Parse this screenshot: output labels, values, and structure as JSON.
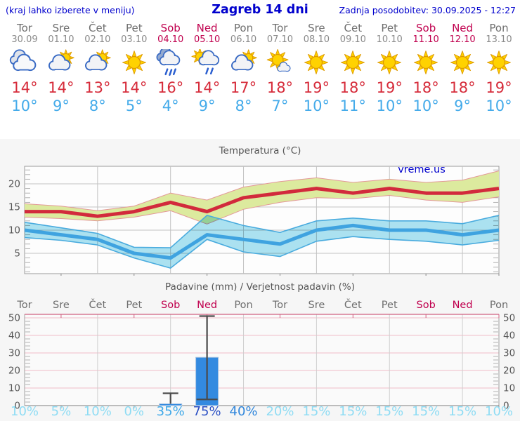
{
  "header": {
    "left_note": "(kraj lahko izberete v meniju)",
    "title": "Zagreb 14 dni",
    "last_update": "Zadnja posodobitev: 30.09.2025 - 12:27"
  },
  "colors": {
    "header_blue": "#0000cd",
    "weekend": "#c0004e",
    "weekday": "#6e6e6e",
    "date_gray": "#8a8a8a",
    "tmax_red": "#d62b3a",
    "tmin_blue": "#45abea",
    "section_bg": "#f6f6f6",
    "grid_gray": "#c3c3c3",
    "grid_pink": "#f0bcc8",
    "axis_text": "#555555",
    "watermark_blue": "#0000cc"
  },
  "forecast": {
    "days": [
      {
        "name": "Tor",
        "date": "30.09",
        "weekend": false,
        "icon": "cloudy",
        "tmax": "14°",
        "tmin": "10°"
      },
      {
        "name": "Sre",
        "date": "01.10",
        "weekend": false,
        "icon": "partly-cloudy",
        "tmax": "14°",
        "tmin": "9°"
      },
      {
        "name": "Čet",
        "date": "02.10",
        "weekend": false,
        "icon": "partly-cloudy",
        "tmax": "13°",
        "tmin": "8°"
      },
      {
        "name": "Pet",
        "date": "03.10",
        "weekend": false,
        "icon": "sunny",
        "tmax": "14°",
        "tmin": "5°"
      },
      {
        "name": "Sob",
        "date": "04.10",
        "weekend": true,
        "icon": "rain",
        "tmax": "16°",
        "tmin": "4°"
      },
      {
        "name": "Ned",
        "date": "05.10",
        "weekend": true,
        "icon": "sun-rain",
        "tmax": "14°",
        "tmin": "9°"
      },
      {
        "name": "Pon",
        "date": "06.10",
        "weekend": false,
        "icon": "partly-cloudy",
        "tmax": "17°",
        "tmin": "8°"
      },
      {
        "name": "Tor",
        "date": "07.10",
        "weekend": false,
        "icon": "mostly-sunny",
        "tmax": "18°",
        "tmin": "7°"
      },
      {
        "name": "Sre",
        "date": "08.10",
        "weekend": false,
        "icon": "sunny",
        "tmax": "19°",
        "tmin": "10°"
      },
      {
        "name": "Čet",
        "date": "09.10",
        "weekend": false,
        "icon": "sunny",
        "tmax": "18°",
        "tmin": "11°"
      },
      {
        "name": "Pet",
        "date": "10.10",
        "weekend": false,
        "icon": "sunny",
        "tmax": "19°",
        "tmin": "10°"
      },
      {
        "name": "Sob",
        "date": "11.10",
        "weekend": true,
        "icon": "sunny",
        "tmax": "18°",
        "tmin": "10°"
      },
      {
        "name": "Ned",
        "date": "12.10",
        "weekend": true,
        "icon": "sunny",
        "tmax": "18°",
        "tmin": "9°"
      },
      {
        "name": "Pon",
        "date": "13.10",
        "weekend": false,
        "icon": "sunny",
        "tmax": "19°",
        "tmin": "10°"
      }
    ]
  },
  "chart_data": [
    {
      "type": "area",
      "title": "Temperatura (°C)",
      "watermark": "vreme.us",
      "ylim": [
        0.5,
        23.8
      ],
      "yticks": [
        5,
        10,
        15,
        20
      ],
      "grid": true,
      "series": [
        {
          "name": "max temperature",
          "color": "#d22a3c",
          "band_color": "#dcea9e",
          "band_edge": "#e39898",
          "values": [
            14,
            14,
            13,
            14,
            16,
            14,
            17,
            18,
            19,
            18,
            19,
            18,
            18,
            19
          ],
          "band_hi": [
            15.7,
            15.2,
            14.2,
            15.2,
            18,
            16.5,
            19.3,
            20.5,
            21.3,
            20.3,
            21,
            20.3,
            20.8,
            22.8
          ],
          "band_lo": [
            12.8,
            12.5,
            12,
            12.8,
            14.2,
            11.3,
            14.5,
            16,
            17,
            16.8,
            17.5,
            16.5,
            16,
            17.2
          ]
        },
        {
          "name": "min temperature",
          "color": "#3fa3e0",
          "band_color": "#ade3f2",
          "band_edge": "#49abde",
          "values": [
            10,
            9,
            8,
            5,
            4,
            9,
            8,
            7,
            10,
            11,
            10,
            10,
            9,
            10
          ],
          "band_hi": [
            11.7,
            10.5,
            9.3,
            6.3,
            6.2,
            13.2,
            11,
            9.5,
            12,
            12.6,
            12,
            12,
            11.4,
            13.2
          ],
          "band_lo": [
            8.4,
            7.8,
            6.8,
            4,
            1.8,
            8,
            5.3,
            4.3,
            7.6,
            8.6,
            8,
            7.6,
            6.8,
            7.8
          ]
        }
      ]
    },
    {
      "type": "bar",
      "title": "Padavine (mm) / Verjetnost padavin (%)",
      "categories": [
        "Tor",
        "Sre",
        "Čet",
        "Pet",
        "Sob",
        "Ned",
        "Pon",
        "Tor",
        "Sre",
        "Čet",
        "Pet",
        "Sob",
        "Ned",
        "Pon"
      ],
      "weekend_indices": [
        4,
        5,
        11,
        12
      ],
      "ylim": [
        0,
        52
      ],
      "yticks": [
        0,
        10,
        20,
        30,
        40,
        50
      ],
      "bar_color": "#338ae0",
      "bars": [
        {
          "index": 4,
          "value": 1,
          "whisker_hi": 7
        },
        {
          "index": 5,
          "value": 27.5,
          "whisker_lo": 3.5,
          "whisker_hi": 51
        }
      ],
      "probabilities": [
        {
          "label": "10%",
          "value": 10
        },
        {
          "label": "5%",
          "value": 5
        },
        {
          "label": "10%",
          "value": 10
        },
        {
          "label": "0%",
          "value": 0
        },
        {
          "label": "35%",
          "value": 35
        },
        {
          "label": "75%",
          "value": 75
        },
        {
          "label": "40%",
          "value": 40
        },
        {
          "label": "20%",
          "value": 20
        },
        {
          "label": "15%",
          "value": 15
        },
        {
          "label": "15%",
          "value": 15
        },
        {
          "label": "15%",
          "value": 15
        },
        {
          "label": "15%",
          "value": 15
        },
        {
          "label": "15%",
          "value": 15
        },
        {
          "label": "10%",
          "value": 10
        }
      ],
      "prob_color_scale": [
        {
          "min": 70,
          "color": "#2a4fc4"
        },
        {
          "min": 40,
          "color": "#2f86dc"
        },
        {
          "min": 25,
          "color": "#3fa8e8"
        },
        {
          "min": 0,
          "color": "#8edcf4"
        }
      ]
    }
  ]
}
